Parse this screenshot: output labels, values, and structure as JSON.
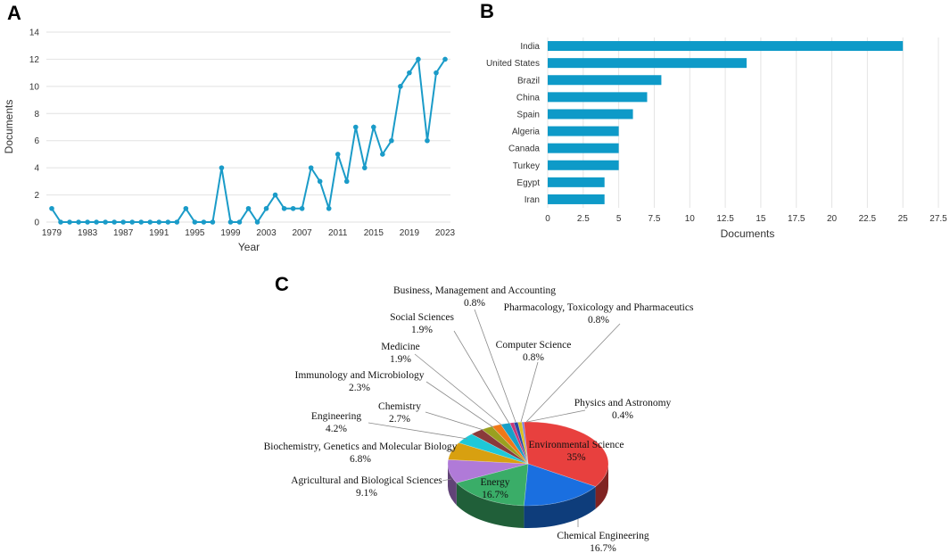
{
  "chart_data": [
    {
      "type": "line",
      "panel": "A",
      "xlabel": "Year",
      "ylabel": "Documents",
      "ylim": [
        0,
        14
      ],
      "yticks": [
        0,
        2,
        4,
        6,
        8,
        10,
        12,
        14
      ],
      "xticks": [
        1979,
        1983,
        1987,
        1991,
        1995,
        1999,
        2003,
        2007,
        2011,
        2015,
        2019,
        2023
      ],
      "color": "#1a9bc8",
      "x": [
        1979,
        1980,
        1981,
        1982,
        1983,
        1984,
        1985,
        1986,
        1987,
        1988,
        1989,
        1990,
        1991,
        1992,
        1993,
        1994,
        1995,
        1996,
        1997,
        1998,
        1999,
        2000,
        2001,
        2002,
        2003,
        2004,
        2005,
        2006,
        2007,
        2008,
        2009,
        2010,
        2011,
        2012,
        2013,
        2014,
        2015,
        2016,
        2017,
        2018,
        2019,
        2020,
        2021,
        2022,
        2023
      ],
      "y": [
        1,
        0,
        0,
        0,
        0,
        0,
        0,
        0,
        0,
        0,
        0,
        0,
        0,
        0,
        0,
        1,
        0,
        0,
        0,
        4,
        0,
        0,
        1,
        0,
        1,
        2,
        1,
        1,
        1,
        4,
        3,
        1,
        5,
        3,
        7,
        4,
        7,
        5,
        6,
        10,
        11,
        12,
        6,
        11,
        12
      ]
    },
    {
      "type": "bar",
      "panel": "B",
      "orientation": "horizontal",
      "xlabel": "Documents",
      "xlim": [
        0,
        27.5
      ],
      "xticks": [
        "0",
        "2.5",
        "5",
        "7.5",
        "10",
        "12.5",
        "15",
        "17.5",
        "20",
        "22.5",
        "25",
        "27.5"
      ],
      "color": "#0e9ac8",
      "categories": [
        "India",
        "United States",
        "Brazil",
        "China",
        "Spain",
        "Algeria",
        "Canada",
        "Turkey",
        "Egypt",
        "Iran"
      ],
      "values": [
        25,
        14,
        8,
        7,
        6,
        5,
        5,
        5,
        4,
        4
      ]
    },
    {
      "type": "pie",
      "panel": "C",
      "style": "3d",
      "slices": [
        {
          "name": "Environmental Science",
          "pct": "35%",
          "value": 35,
          "color": "#e8403e"
        },
        {
          "name": "Chemical Engineering",
          "pct": "16.7%",
          "value": 16.7,
          "color": "#1a6fe0"
        },
        {
          "name": "Energy",
          "pct": "16.7%",
          "value": 16.7,
          "color": "#3aad68"
        },
        {
          "name": "Agricultural and Biological Sciences",
          "pct": "9.1%",
          "value": 9.1,
          "color": "#b07ad8"
        },
        {
          "name": "Biochemistry, Genetics and Molecular Biology",
          "pct": "6.8%",
          "value": 6.8,
          "color": "#d8a010"
        },
        {
          "name": "Engineering",
          "pct": "4.2%",
          "value": 4.2,
          "color": "#1ec8d8"
        },
        {
          "name": "Chemistry",
          "pct": "2.7%",
          "value": 2.7,
          "color": "#8a3a3a"
        },
        {
          "name": "Immunology and Microbiology",
          "pct": "2.3%",
          "value": 2.3,
          "color": "#9aa020"
        },
        {
          "name": "Medicine",
          "pct": "1.9%",
          "value": 1.9,
          "color": "#f07818"
        },
        {
          "name": "Social Sciences",
          "pct": "1.9%",
          "value": 1.9,
          "color": "#18a0c8"
        },
        {
          "name": "Business, Management and Accounting",
          "pct": "0.8%",
          "value": 0.8,
          "color": "#c83878"
        },
        {
          "name": "Pharmacology, Toxicology and Pharmaceutics",
          "pct": "0.8%",
          "value": 0.8,
          "color": "#2848a8"
        },
        {
          "name": "Computer Science",
          "pct": "0.8%",
          "value": 0.8,
          "color": "#d8c020"
        },
        {
          "name": "Physics and Astronomy",
          "pct": "0.4%",
          "value": 0.4,
          "color": "#7878d8"
        }
      ]
    }
  ]
}
